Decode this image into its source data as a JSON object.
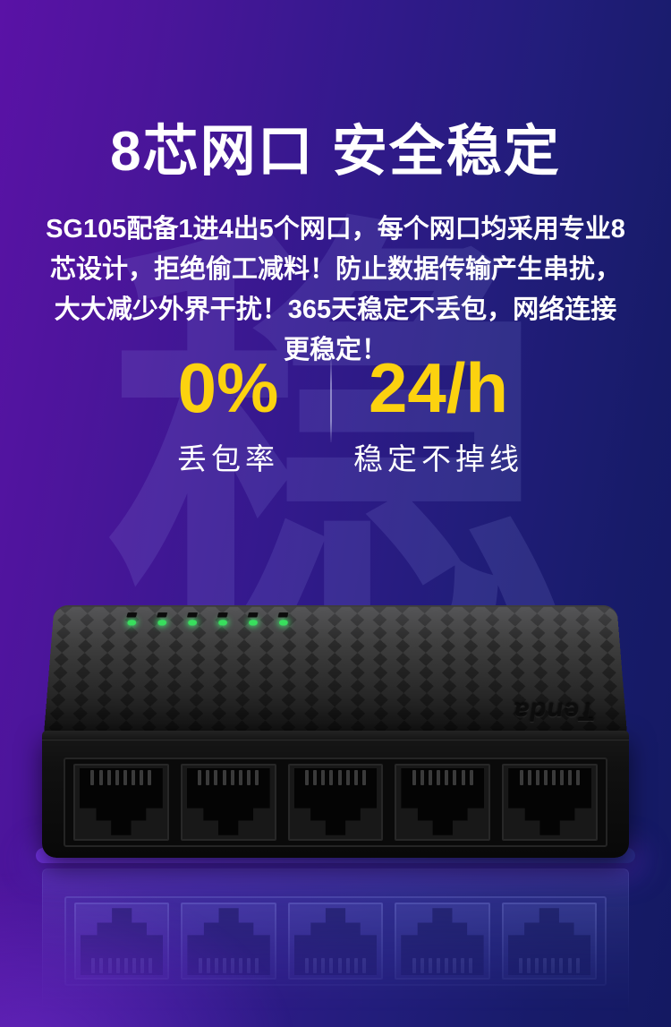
{
  "header": {
    "title": "8芯网口 安全稳定"
  },
  "description": "SG105配备1进4出5个网口，每个网口均采用专业8芯设计，拒绝偷工减料！防止数据传输产生串扰，大大减少外界干扰！365天稳定不丢包，网络连接更稳定！",
  "watermark": "稳",
  "stats": [
    {
      "value": "0%",
      "label": "丢包率"
    },
    {
      "value": "24/h",
      "label": "稳定不掉线"
    }
  ],
  "product": {
    "brand_logo": "Tenda",
    "port_count": 5,
    "pins_per_port": 8,
    "led_count": 6,
    "led_color": "#38df5d"
  },
  "colors": {
    "accent_yellow": "#fcd20f",
    "background_purple": "#5a12a6",
    "background_navy": "#141962",
    "text_white": "#ffffff"
  }
}
